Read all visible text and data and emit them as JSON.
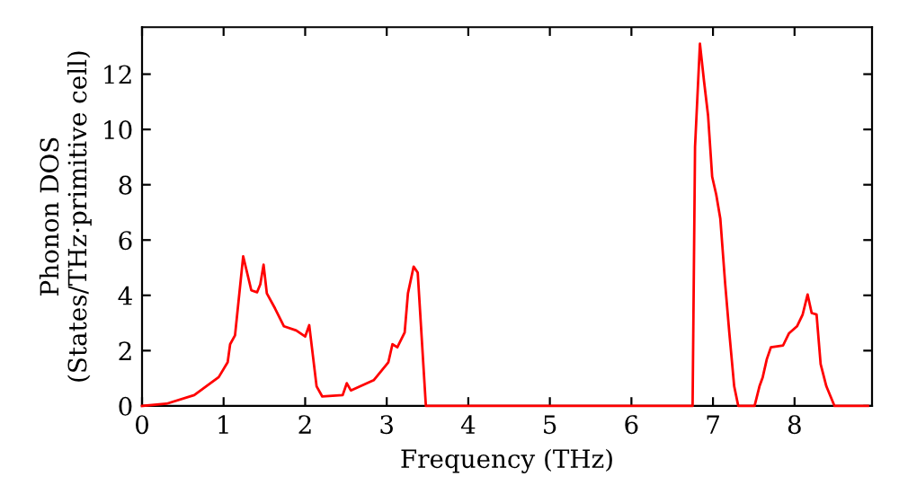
{
  "chart_data": {
    "type": "line",
    "xlabel": "Frequency (THz)",
    "ylabel": "Phonon DOS\n(States/THz·primitive cell)",
    "x": [
      0,
      0.3,
      0.64,
      0.94,
      1.05,
      1.08,
      1.14,
      1.24,
      1.34,
      1.41,
      1.45,
      1.49,
      1.53,
      1.63,
      1.74,
      1.89,
      2.0,
      2.05,
      2.14,
      2.21,
      2.46,
      2.51,
      2.56,
      2.84,
      3.02,
      3.07,
      3.13,
      3.22,
      3.26,
      3.33,
      3.38,
      3.48,
      6.75,
      6.78,
      6.84,
      6.89,
      6.94,
      6.99,
      7.04,
      7.09,
      7.15,
      7.2,
      7.26,
      7.31,
      7.51,
      7.57,
      7.61,
      7.66,
      7.71,
      7.86,
      7.93,
      8.03,
      8.1,
      8.16,
      8.21,
      8.27,
      8.32,
      8.39,
      8.49,
      8.9
    ],
    "series": [
      {
        "color": "#ff0000",
        "values": [
          0,
          0.08,
          0.39,
          1.04,
          1.58,
          2.23,
          2.55,
          5.41,
          4.18,
          4.11,
          4.4,
          5.11,
          4.07,
          3.53,
          2.88,
          2.73,
          2.51,
          2.92,
          0.71,
          0.34,
          0.39,
          0.82,
          0.56,
          0.93,
          1.58,
          2.23,
          2.12,
          2.66,
          4.07,
          5.04,
          4.82,
          0,
          0,
          9.37,
          13.1,
          11.75,
          10.5,
          8.29,
          7.64,
          6.77,
          4.4,
          2.66,
          0.71,
          0,
          0,
          0.71,
          1.04,
          1.69,
          2.12,
          2.19,
          2.62,
          2.88,
          3.31,
          4.03,
          3.36,
          3.31,
          1.51,
          0.71,
          0,
          0
        ]
      }
    ],
    "xlim": [
      0,
      8.95
    ],
    "ylim": [
      0,
      13.7
    ],
    "xticks": [
      0,
      1,
      2,
      3,
      4,
      5,
      6,
      7,
      8
    ],
    "yticks": [
      0,
      2,
      4,
      6,
      8,
      10,
      12
    ],
    "grid": false,
    "legend": false,
    "line_style": "solid",
    "marker": "none"
  }
}
